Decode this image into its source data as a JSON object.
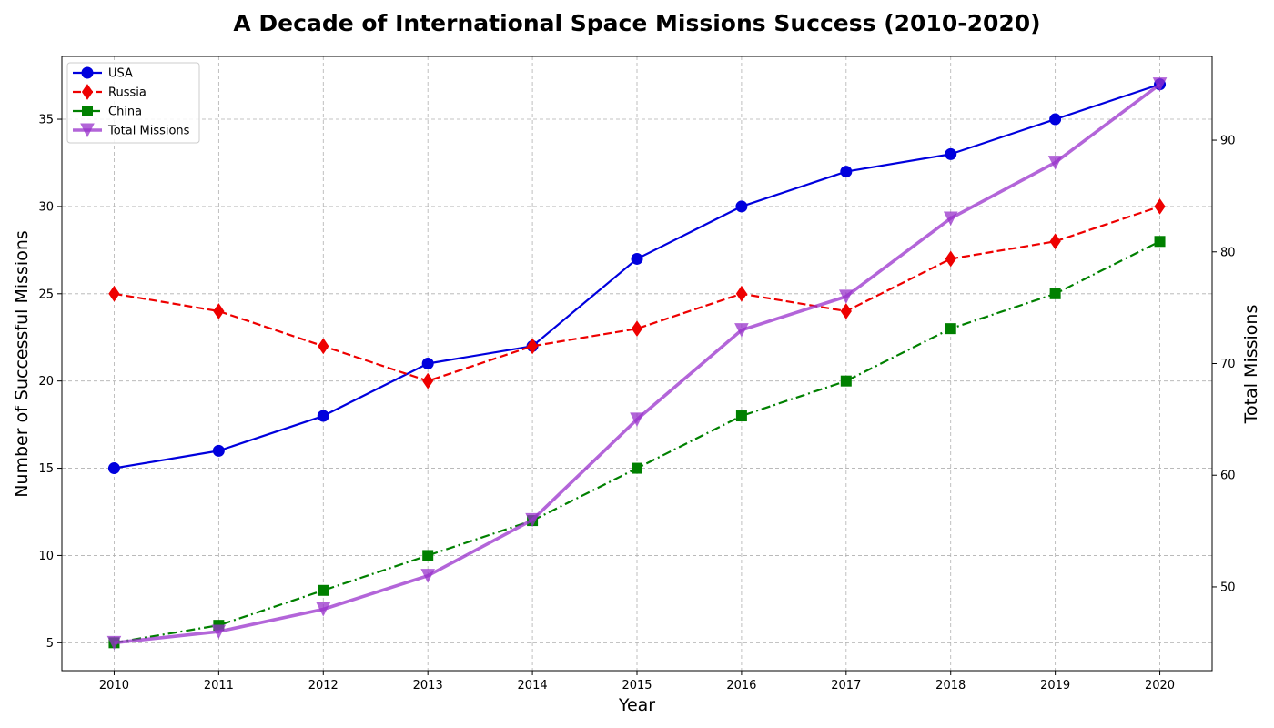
{
  "chart_data": {
    "type": "line",
    "title": "A Decade of International Space Missions Success (2010-2020)",
    "xlabel": "Year",
    "ylabel": "Number of Successful Missions",
    "ylabel_right": "Total Missions",
    "x": [
      2010,
      2011,
      2012,
      2013,
      2014,
      2015,
      2016,
      2017,
      2018,
      2019,
      2020
    ],
    "xticks": [
      "2010",
      "2011",
      "2012",
      "2013",
      "2014",
      "2015",
      "2016",
      "2017",
      "2018",
      "2019",
      "2020"
    ],
    "ylim": [
      3.4,
      38.6
    ],
    "yticks": [
      5,
      10,
      15,
      20,
      25,
      30,
      35
    ],
    "ylim_right": [
      42.5,
      97.5
    ],
    "yticks_right": [
      50,
      60,
      70,
      80,
      90
    ],
    "grid": true,
    "legend_position": "top-left",
    "series": [
      {
        "name": "USA",
        "axis": "left",
        "color": "#0000dd",
        "line": "solid",
        "marker": "circle",
        "values": [
          15,
          16,
          18,
          21,
          22,
          27,
          30,
          32,
          33,
          35,
          37
        ]
      },
      {
        "name": "Russia",
        "axis": "left",
        "color": "#ee0000",
        "line": "dashed",
        "marker": "diamond",
        "values": [
          25,
          24,
          22,
          20,
          22,
          23,
          25,
          24,
          27,
          28,
          30
        ]
      },
      {
        "name": "China",
        "axis": "left",
        "color": "#008000",
        "line": "dashdot",
        "marker": "square",
        "values": [
          5,
          6,
          8,
          10,
          12,
          15,
          18,
          20,
          23,
          25,
          28
        ]
      },
      {
        "name": "Total Missions",
        "axis": "right",
        "color": "#9932cc",
        "line": "solid",
        "marker": "triangle-down",
        "values": [
          45,
          46,
          48,
          51,
          56,
          65,
          73,
          76,
          83,
          88,
          95
        ]
      }
    ]
  }
}
